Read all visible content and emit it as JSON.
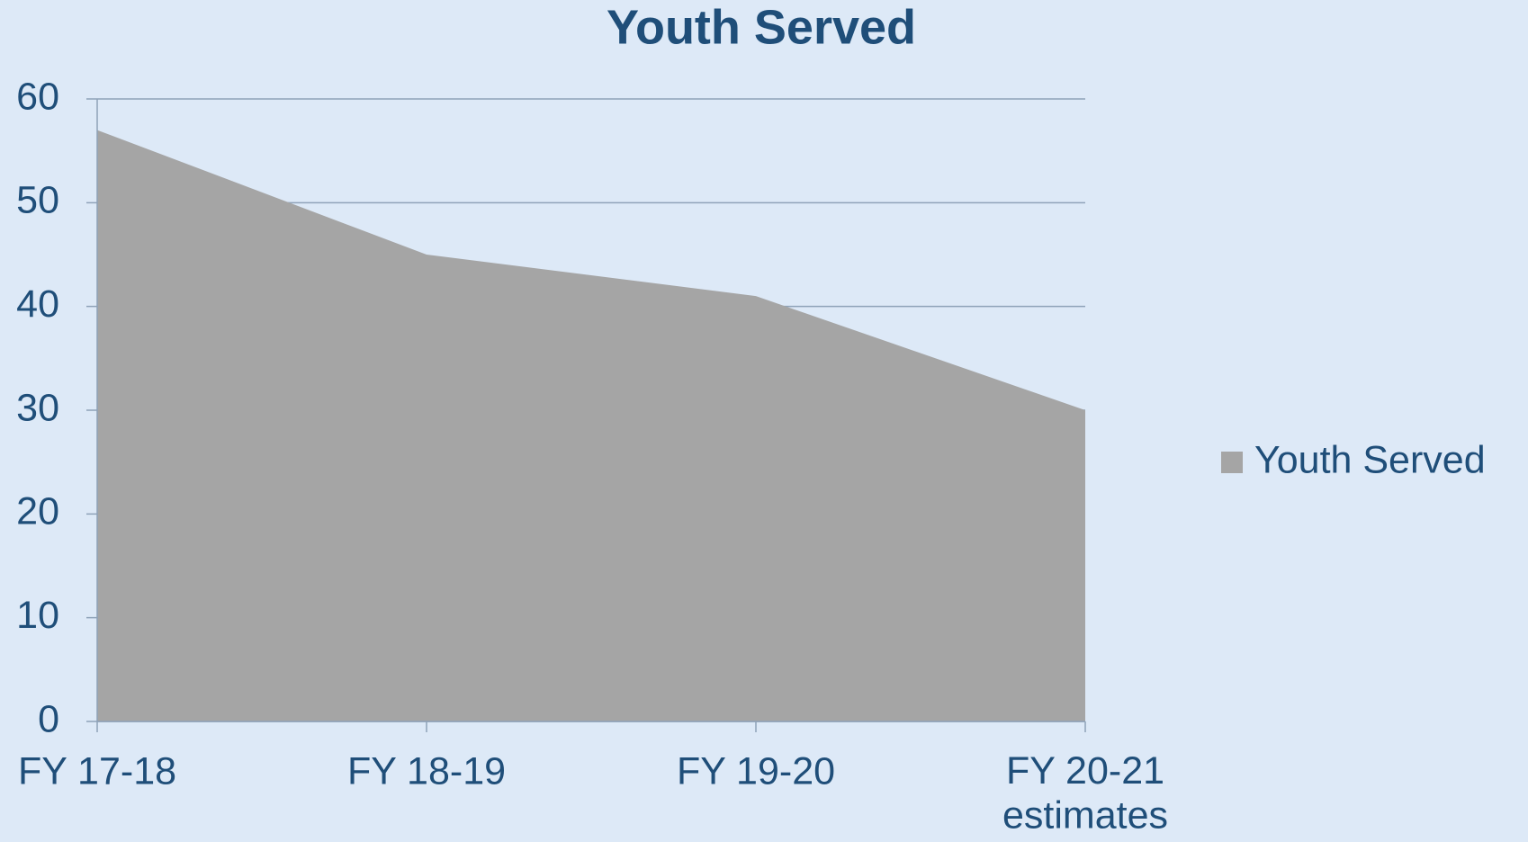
{
  "chart_data": {
    "type": "area",
    "title": "Youth Served",
    "categories": [
      "FY 17-18",
      "FY 18-19",
      "FY 19-20",
      "FY 20-21\nestimates"
    ],
    "series": [
      {
        "name": "Youth Served",
        "color": "#a5a5a5",
        "values": [
          57,
          45,
          41,
          30
        ]
      }
    ],
    "ylim": [
      0,
      60
    ],
    "yticks": [
      0,
      10,
      20,
      30,
      40,
      50,
      60
    ],
    "grid": true,
    "legend": "right"
  }
}
